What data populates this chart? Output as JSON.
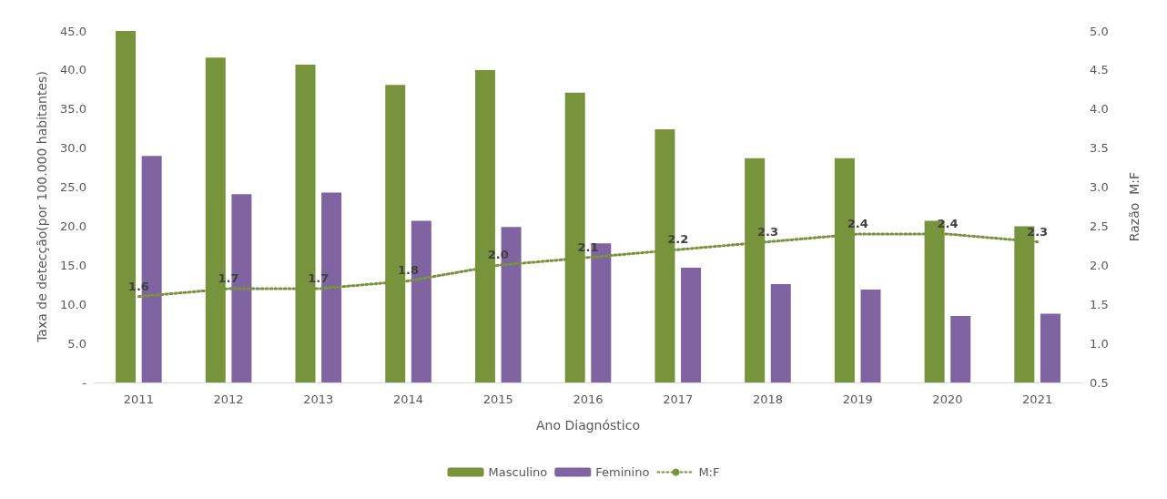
{
  "chart_data": {
    "type": "bar",
    "xlabel": "Ano Diagnóstico",
    "ylabel": "Taxa de detecção(por 100.000 habitantes)",
    "y2label": "Razão  M:F",
    "categories": [
      "2011",
      "2012",
      "2013",
      "2014",
      "2015",
      "2016",
      "2017",
      "2018",
      "2019",
      "2020",
      "2021"
    ],
    "series": [
      {
        "name": "Masculino",
        "color": "#77933c",
        "values": [
          45.0,
          41.6,
          40.7,
          38.1,
          40.0,
          37.1,
          32.4,
          28.7,
          28.7,
          20.7,
          20.0
        ]
      },
      {
        "name": "Feminino",
        "color": "#8064a2",
        "values": [
          29.0,
          24.1,
          24.3,
          20.7,
          19.9,
          17.8,
          14.7,
          12.6,
          11.9,
          8.5,
          8.8
        ]
      },
      {
        "name": "M:F",
        "type": "line",
        "axis": "y2",
        "color": "#77933c",
        "line_style": "dotted",
        "marker": "none",
        "values": [
          1.6,
          1.7,
          1.7,
          1.8,
          2.0,
          2.1,
          2.2,
          2.3,
          2.4,
          2.4,
          2.3
        ],
        "value_labels": [
          "1.6",
          "1.7",
          "1.7",
          "1.8",
          "2.0",
          "2.1",
          "2.2",
          "2.3",
          "2.4",
          "2.4",
          "2.3"
        ]
      }
    ],
    "ylim": [
      0,
      45
    ],
    "yticks": [
      {
        "value": 0,
        "label": "-"
      },
      {
        "value": 5,
        "label": "5.0"
      },
      {
        "value": 10,
        "label": "10.0"
      },
      {
        "value": 15,
        "label": "15.0"
      },
      {
        "value": 20,
        "label": "20.0"
      },
      {
        "value": 25,
        "label": "25.0"
      },
      {
        "value": 30,
        "label": "30.0"
      },
      {
        "value": 35,
        "label": "35.0"
      },
      {
        "value": 40,
        "label": "40.0"
      },
      {
        "value": 45,
        "label": "45.0"
      }
    ],
    "y2lim": [
      0.5,
      5
    ],
    "y2ticks": [
      {
        "value": 0.5,
        "label": "0.5"
      },
      {
        "value": 1,
        "label": "1.0"
      },
      {
        "value": 1.5,
        "label": "1.5"
      },
      {
        "value": 2,
        "label": "2.0"
      },
      {
        "value": 2.5,
        "label": "2.5"
      },
      {
        "value": 3,
        "label": "3.0"
      },
      {
        "value": 3.5,
        "label": "3.5"
      },
      {
        "value": 4,
        "label": "4.0"
      },
      {
        "value": 4.5,
        "label": "4.5"
      },
      {
        "value": 5,
        "label": "5.0"
      }
    ],
    "legend": "bottom",
    "grid": false
  }
}
